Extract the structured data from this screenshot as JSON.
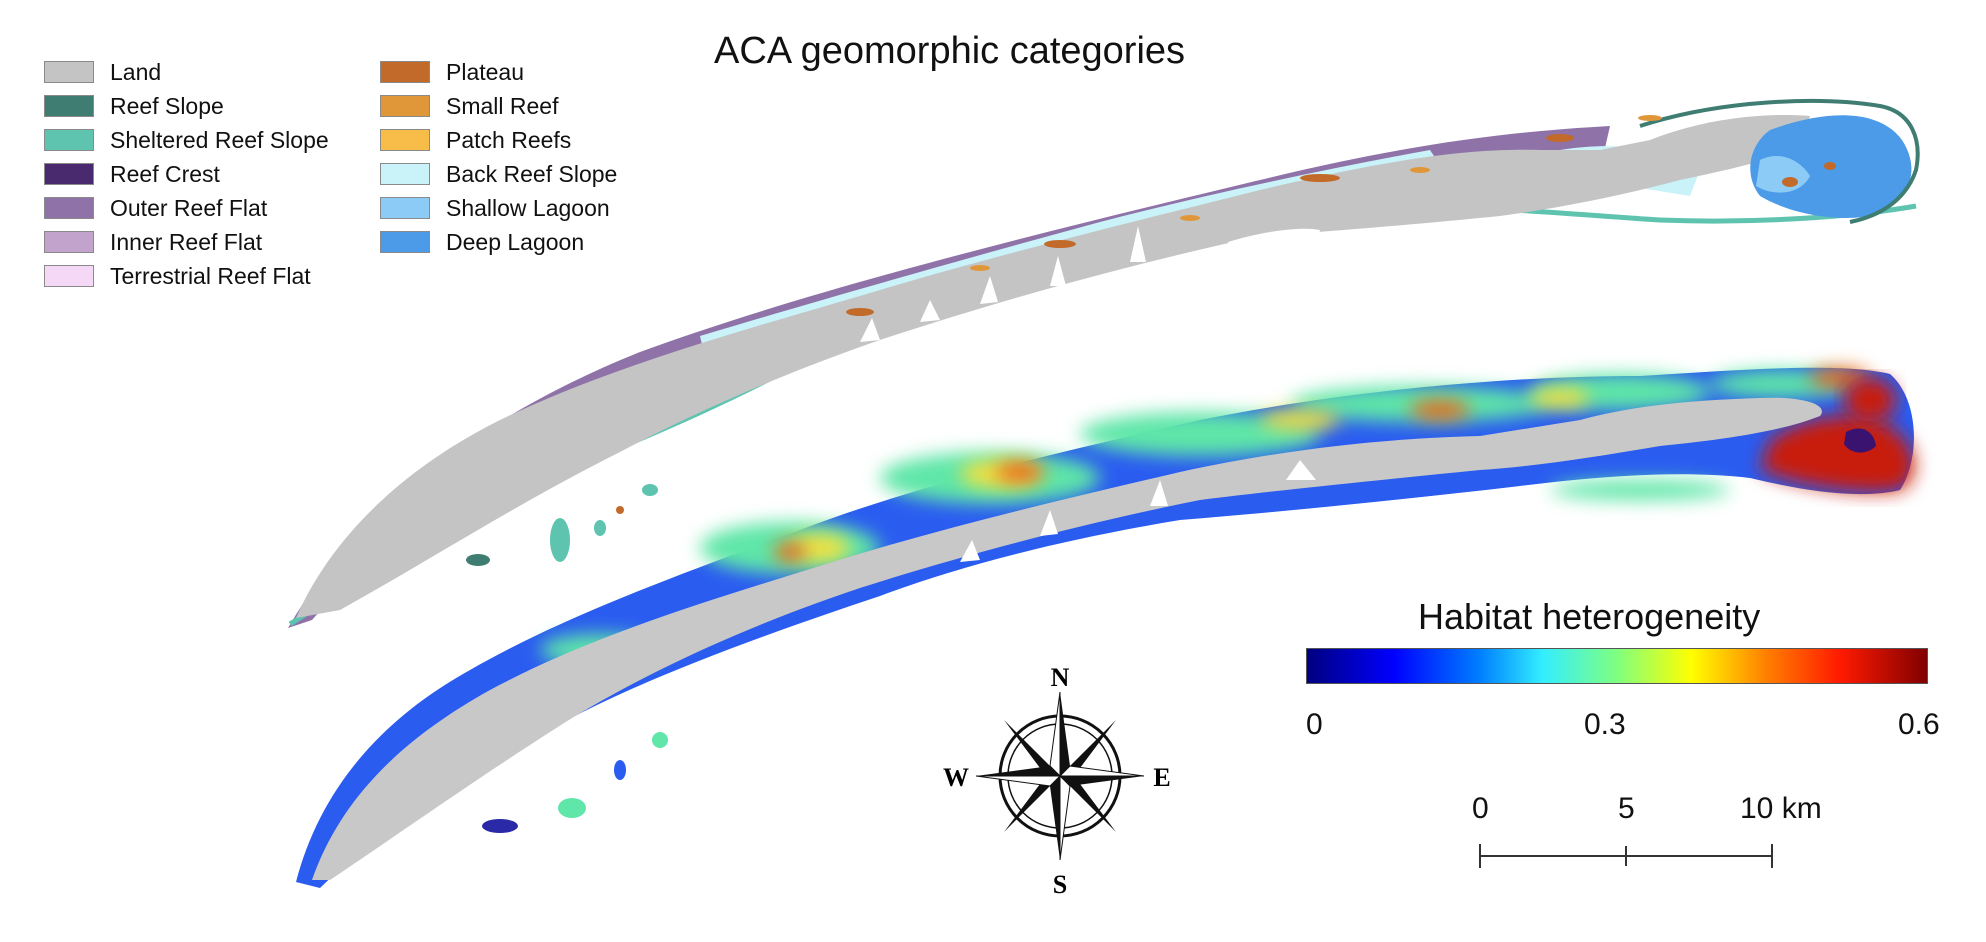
{
  "title": "ACA geomorphic categories",
  "legend": {
    "left": [
      {
        "label": "Land",
        "color": "#c4c4c4"
      },
      {
        "label": "Reef Slope",
        "color": "#3f7d72"
      },
      {
        "label": "Sheltered Reef Slope",
        "color": "#5ec4b0"
      },
      {
        "label": "Reef Crest",
        "color": "#4a2a6e"
      },
      {
        "label": "Outer Reef Flat",
        "color": "#8f73a8"
      },
      {
        "label": "Inner Reef Flat",
        "color": "#c2a3cc"
      },
      {
        "label": "Terrestrial Reef Flat",
        "color": "#f5d8f5"
      }
    ],
    "right": [
      {
        "label": "Plateau",
        "color": "#c26a2a"
      },
      {
        "label": "Small Reef",
        "color": "#e0973a"
      },
      {
        "label": "Patch Reefs",
        "color": "#f7bd48"
      },
      {
        "label": "Back Reef Slope",
        "color": "#c9f3f8"
      },
      {
        "label": "Shallow Lagoon",
        "color": "#8ccbf5"
      },
      {
        "label": "Deep Lagoon",
        "color": "#4b9be8"
      }
    ]
  },
  "colorbar": {
    "title": "Habitat heterogeneity",
    "ticks": [
      "0",
      "0.3",
      "0.6"
    ],
    "range": [
      0,
      0.6
    ]
  },
  "compass": {
    "n": "N",
    "s": "S",
    "e": "E",
    "w": "W"
  },
  "scalebar": {
    "labels": [
      "0",
      "5",
      "10 km"
    ]
  }
}
